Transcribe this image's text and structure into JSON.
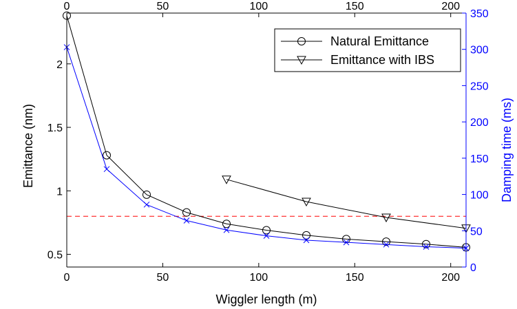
{
  "chart_data": {
    "type": "line",
    "xlabel": "Wiggler length (m)",
    "ylabel_left": "Emittance (nm)",
    "ylabel_right": "Damping time (ms)",
    "xlim": [
      0,
      208
    ],
    "ylim_left": [
      0.4,
      2.4
    ],
    "ylim_right": [
      0,
      350
    ],
    "x_ticks": [
      "0",
      "50",
      "100",
      "150",
      "200"
    ],
    "x_tick_values": [
      0,
      50,
      100,
      150,
      200
    ],
    "y_left_ticks": [
      "0.5",
      "1",
      "1.5",
      "2"
    ],
    "y_left_tick_values": [
      0.5,
      1.0,
      1.5,
      2.0
    ],
    "y_right_ticks": [
      "0",
      "50",
      "100",
      "150",
      "200",
      "250",
      "300",
      "350"
    ],
    "y_right_tick_values": [
      0,
      50,
      100,
      150,
      200,
      250,
      300,
      350
    ],
    "grid": false,
    "legend_position": "top-right",
    "colors": {
      "axis_left": "#000000",
      "axis_right": "#0000ff",
      "threshold": "#ff0000",
      "series_black": "#000000",
      "series_blue": "#0000ff"
    },
    "series": [
      {
        "name": "Natural Emittance",
        "axis": "left",
        "marker": "circle",
        "color": "#000000",
        "x": [
          0,
          20.8,
          41.6,
          62.4,
          83.2,
          104,
          124.8,
          145.6,
          166.4,
          187.2,
          208
        ],
        "values": [
          2.38,
          1.28,
          0.97,
          0.83,
          0.74,
          0.69,
          0.65,
          0.62,
          0.6,
          0.58,
          0.555
        ]
      },
      {
        "name": "Emittance with IBS",
        "axis": "left",
        "marker": "triangle-down",
        "color": "#000000",
        "x": [
          83.2,
          124.8,
          166.4,
          208
        ],
        "values": [
          1.09,
          0.915,
          0.79,
          0.705
        ]
      },
      {
        "axis": "right",
        "marker": "x",
        "color": "#0000ff",
        "x": [
          0,
          20.8,
          41.6,
          62.4,
          83.2,
          104,
          124.8,
          145.6,
          166.4,
          187.2,
          208
        ],
        "values": [
          303,
          135,
          86,
          64,
          51,
          43,
          37,
          34,
          31,
          28,
          26
        ]
      }
    ],
    "threshold": {
      "axis": "left",
      "value": 0.8,
      "style": "dashed",
      "color": "#ff0000"
    }
  }
}
